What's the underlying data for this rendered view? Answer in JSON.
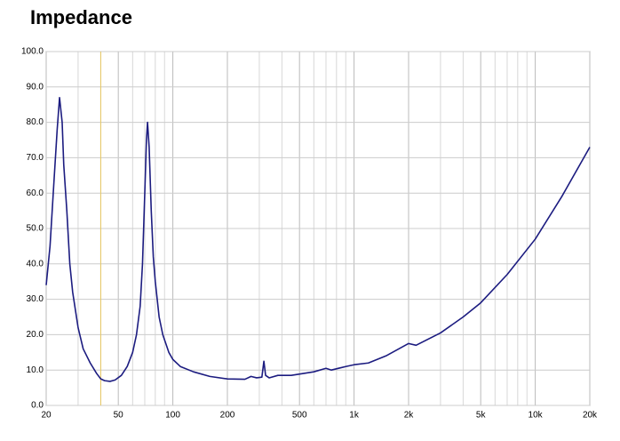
{
  "chart_data": {
    "type": "line",
    "title": "Impedance",
    "x_scale": "log",
    "grid": true,
    "xlim": [
      20,
      20000
    ],
    "ylim": [
      0,
      100
    ],
    "xticks": [
      20,
      50,
      100,
      200,
      500,
      {
        "value": 1000,
        "label": "1k"
      },
      {
        "value": 2000,
        "label": "2k"
      },
      {
        "value": 5000,
        "label": "5k"
      },
      {
        "value": 10000,
        "label": "10k"
      },
      {
        "value": 20000,
        "label": "20k"
      }
    ],
    "x_minor_gridlines": [
      30,
      40,
      60,
      70,
      80,
      90,
      300,
      400,
      600,
      700,
      800,
      900,
      3000,
      4000,
      6000,
      7000,
      8000,
      9000
    ],
    "yticks": [
      {
        "value": 0,
        "label": "0.0"
      },
      {
        "value": 10,
        "label": "10.0"
      },
      {
        "value": 20,
        "label": "20.0"
      },
      {
        "value": 30,
        "label": "30.0"
      },
      {
        "value": 40,
        "label": "40.0"
      },
      {
        "value": 50,
        "label": "50.0"
      },
      {
        "value": 60,
        "label": "60.0"
      },
      {
        "value": 70,
        "label": "70.0"
      },
      {
        "value": 80,
        "label": "80.0"
      },
      {
        "value": 90,
        "label": "90.0"
      },
      {
        "value": 100,
        "label": "100.0"
      }
    ],
    "marker_x": 40,
    "marker_color": "#e8c860",
    "x": [
      20,
      21,
      22,
      23,
      23.7,
      24.5,
      25,
      26,
      27,
      28,
      30,
      32,
      35,
      38,
      40,
      42,
      45,
      48,
      52,
      56,
      60,
      63,
      66,
      68,
      70,
      71.5,
      72.5,
      74,
      76,
      78,
      80,
      84,
      88,
      95,
      100,
      110,
      130,
      160,
      200,
      250,
      270,
      290,
      310,
      318,
      325,
      340,
      380,
      450,
      600,
      700,
      750,
      900,
      1000,
      1200,
      1500,
      2000,
      2200,
      3000,
      4000,
      5000,
      7000,
      10000,
      14000,
      20000
    ],
    "series": [
      {
        "color": "#1c1c80",
        "values": [
          34,
          45,
          62,
          78,
          87,
          80,
          68,
          55,
          40,
          32,
          22,
          16,
          12,
          9,
          7.5,
          7,
          6.8,
          7.2,
          8.5,
          11,
          15,
          20,
          28,
          40,
          60,
          75,
          80,
          73,
          55,
          42,
          35,
          25,
          20,
          15,
          13,
          11,
          9.5,
          8.2,
          7.5,
          7.4,
          8.2,
          7.8,
          8,
          12.5,
          8.5,
          7.8,
          8.5,
          8.5,
          9.5,
          10.5,
          10,
          11,
          11.5,
          12,
          14,
          17.5,
          17,
          20.5,
          25,
          29,
          37,
          47,
          59,
          73
        ]
      }
    ]
  }
}
